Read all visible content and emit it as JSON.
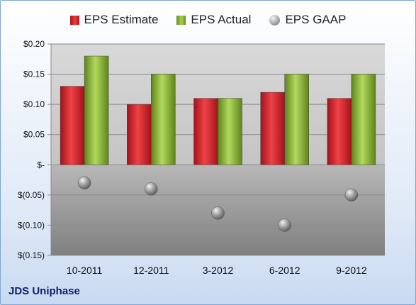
{
  "chart_data": {
    "type": "bar",
    "categories": [
      "10-2011",
      "12-2011",
      "3-2012",
      "6-2012",
      "9-2012"
    ],
    "series": [
      {
        "name": "EPS Estimate",
        "values": [
          0.13,
          0.1,
          0.11,
          0.12,
          0.11
        ],
        "color": "#d42a2f"
      },
      {
        "name": "EPS Actual",
        "values": [
          0.18,
          0.15,
          0.11,
          0.15,
          0.15
        ],
        "color": "#8fba3c"
      },
      {
        "name": "EPS GAAP",
        "values": [
          -0.03,
          -0.04,
          -0.08,
          -0.1,
          -0.05
        ],
        "color": "#9a9a9a"
      }
    ],
    "ylim": [
      -0.15,
      0.2
    ],
    "yticks": [
      0.2,
      0.15,
      0.1,
      0.05,
      0,
      -0.05,
      -0.1,
      -0.15
    ],
    "ytick_labels": [
      "$0.20",
      "$0.15",
      "$0.10",
      "$0.05",
      "$-",
      "$(0.05)",
      "$(0.10)",
      "$(0.15)"
    ],
    "grid": true,
    "legend": "top-center"
  },
  "legend": {
    "estimate": "EPS Estimate",
    "actual": "EPS Actual",
    "gaap": "EPS GAAP"
  },
  "company": "JDS Uniphase"
}
